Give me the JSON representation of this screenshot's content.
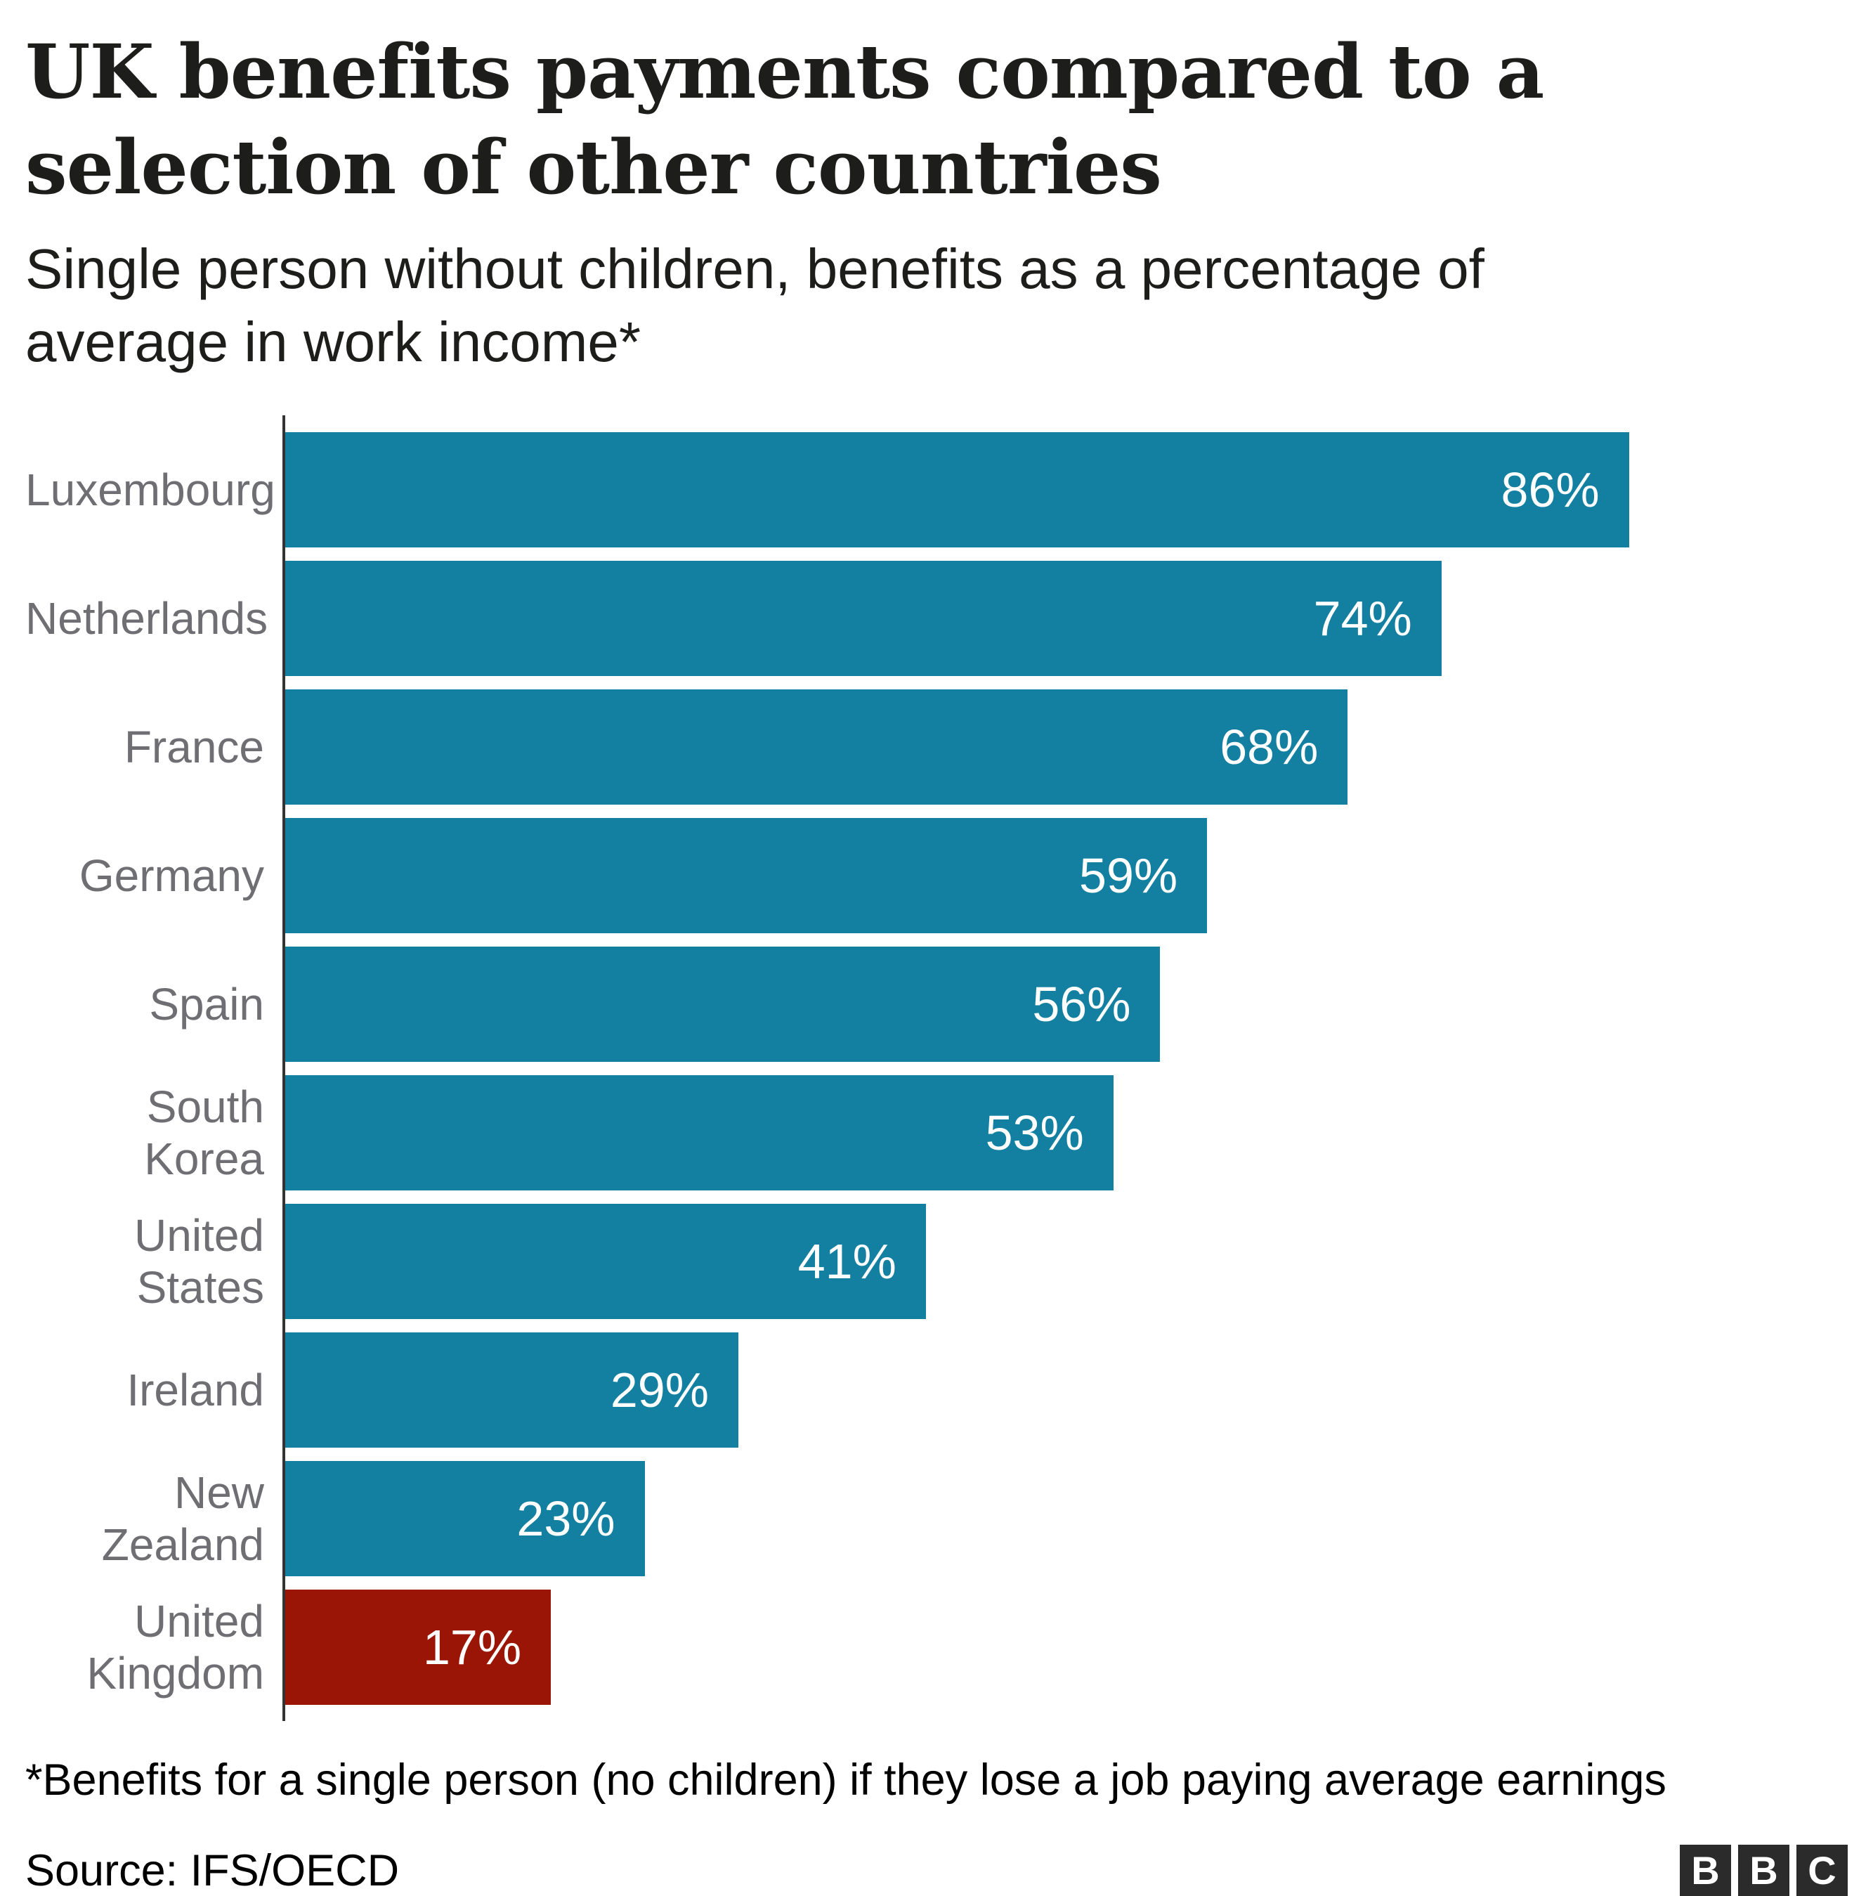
{
  "header": {
    "title_lines": [
      "UK benefits payments compared to a",
      "selection of other countries"
    ],
    "subtitle_lines": [
      "Single person without children, benefits as a percentage of",
      "average in work income*"
    ]
  },
  "chart_data": {
    "type": "bar",
    "orientation": "horizontal",
    "title": "UK benefits payments compared to a selection of other countries",
    "subtitle": "Single person without children, benefits as a percentage of average in work income*",
    "categories": [
      "Luxembourg",
      "Netherlands",
      "France",
      "Germany",
      "Spain",
      "South Korea",
      "United States",
      "Ireland",
      "New Zealand",
      "United Kingdom"
    ],
    "values": [
      86,
      74,
      68,
      59,
      56,
      53,
      41,
      29,
      23,
      17
    ],
    "value_labels": [
      "86%",
      "74%",
      "68%",
      "59%",
      "56%",
      "53%",
      "41%",
      "29%",
      "23%",
      "17%"
    ],
    "xlim": [
      0,
      100
    ],
    "grid": false,
    "legend": "none",
    "bar_color": "#1380A1",
    "highlight_color": "#9A1506",
    "highlight_category": "United Kingdom",
    "highlight_index": 9,
    "axis_color": "#333333",
    "category_label_color": "#6E6E73",
    "value_label_color": "#FFFFFF",
    "value_label_position": "inside-end"
  },
  "footer": {
    "footnote": "*Benefits for a single person (no children) if they lose a job paying average earnings",
    "source": "Source: IFS/OECD",
    "logo_letters": [
      "B",
      "B",
      "C"
    ]
  }
}
